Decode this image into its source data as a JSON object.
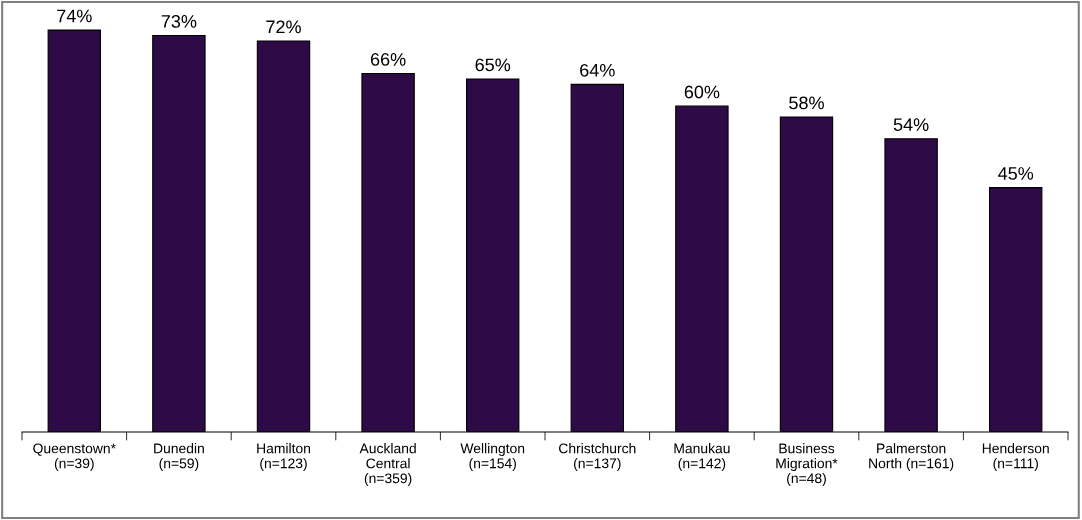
{
  "chart_data": {
    "type": "bar",
    "categories": [
      "Queenstown*\n(n=39)",
      "Dunedin\n(n=59)",
      "Hamilton\n(n=123)",
      "Auckland\nCentral\n(n=359)",
      "Wellington\n(n=154)",
      "Christchurch\n(n=137)",
      "Manukau\n(n=142)",
      "Business\nMigration*\n(n=48)",
      "Palmerston\nNorth (n=161)",
      "Henderson\n(n=111)"
    ],
    "values": [
      74,
      73,
      72,
      66,
      65,
      64,
      60,
      58,
      54,
      45
    ],
    "value_labels": [
      "74%",
      "73%",
      "72%",
      "66%",
      "65%",
      "64%",
      "60%",
      "58%",
      "54%",
      "45%"
    ],
    "color": "#2e0a46",
    "tick_labels": "x",
    "grid": false,
    "legend": false
  }
}
